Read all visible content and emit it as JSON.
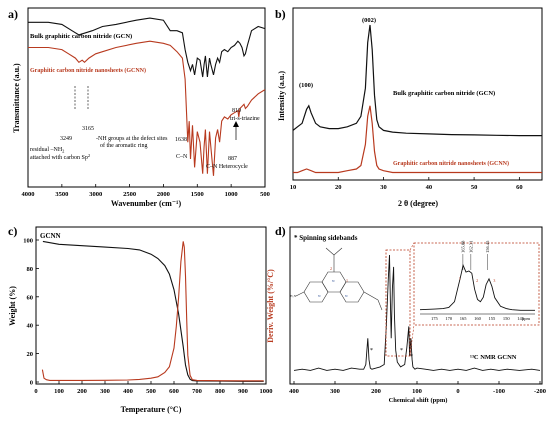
{
  "colors": {
    "black": "#111111",
    "red": "#b83a1f",
    "frame": "#000000"
  },
  "panels": {
    "a": {
      "label": "a)"
    },
    "b": {
      "label": "b)"
    },
    "c": {
      "label": "c)"
    },
    "d": {
      "label": "d)"
    }
  },
  "chart_data": [
    {
      "panel": "a",
      "type": "line",
      "xlabel": "Wavenumber (cm⁻¹)",
      "ylabel": "Transmittance (a.u.)",
      "xlim": [
        4000,
        500
      ],
      "xticks": [
        "4000",
        "3500",
        "3000",
        "2500",
        "2000",
        "1500",
        "1000",
        "500"
      ],
      "series": [
        {
          "name": "Bulk graphitic carbon nitride (GCN)",
          "color": "#111111",
          "x": [
            4000,
            3700,
            3500,
            3350,
            3250,
            3150,
            3050,
            2900,
            2700,
            2400,
            2200,
            2000,
            1900,
            1800,
            1720,
            1680,
            1640,
            1600,
            1570,
            1540,
            1500,
            1460,
            1420,
            1400,
            1380,
            1350,
            1320,
            1300,
            1260,
            1230,
            1200,
            1170,
            1140,
            1100,
            1050,
            1000,
            950,
            900,
            870,
            840,
            810,
            790,
            760,
            700,
            600,
            500
          ],
          "y": [
            37,
            37,
            36,
            33,
            31,
            32,
            33,
            35,
            36,
            38,
            39,
            38,
            33,
            33,
            32,
            24,
            18,
            14,
            17,
            12,
            20,
            19,
            11,
            17,
            21,
            11,
            20,
            17,
            12,
            17,
            20,
            18,
            23,
            24,
            23,
            25,
            26,
            28,
            27,
            25,
            21,
            22,
            26,
            33,
            35,
            34
          ]
        },
        {
          "name": "Graphitic carbon nitride nanosheets (GCNN)",
          "color": "#b83a1f",
          "x": [
            4000,
            3700,
            3500,
            3400,
            3300,
            3249,
            3200,
            3165,
            3100,
            3000,
            2900,
            2700,
            2400,
            2200,
            2000,
            1900,
            1800,
            1720,
            1680,
            1640,
            1620,
            1600,
            1570,
            1540,
            1500,
            1460,
            1420,
            1400,
            1380,
            1350,
            1320,
            1300,
            1260,
            1230,
            1200,
            1170,
            1140,
            1100,
            1050,
            1000,
            950,
            900,
            887,
            870,
            840,
            810,
            790,
            760,
            700,
            600,
            500
          ],
          "y": [
            25,
            25,
            24,
            22,
            20,
            18,
            19,
            18,
            20,
            22,
            23,
            25,
            27,
            28,
            27,
            26,
            23,
            20,
            10,
            -20,
            -10,
            -28,
            -12,
            -32,
            -15,
            -20,
            -35,
            -22,
            -14,
            -35,
            -15,
            -22,
            -36,
            -18,
            -14,
            -20,
            -10,
            -8,
            -9,
            -7,
            -6,
            -5,
            -8,
            -4,
            -3,
            -2,
            -4,
            -3,
            0,
            3,
            5
          ]
        }
      ],
      "annotations": [
        "3249",
        "3165",
        "-NH groups at the defect sites",
        "of the aromatic ring",
        "residual –NH",
        "attached with carbon Sp",
        "1638",
        "C–N",
        "887",
        "C–N Heterocycle",
        "810",
        "tri-s-triazine"
      ],
      "annotation_subs": [
        "2",
        "2"
      ]
    },
    {
      "panel": "b",
      "type": "line",
      "xlabel": "2 θ (degree)",
      "ylabel": "Intensity (a.u.)",
      "xlim": [
        10,
        65
      ],
      "xticks": [
        "10",
        "20",
        "30",
        "40",
        "50",
        "60"
      ],
      "series": [
        {
          "name": "Bulk graphitic carbon nitride (GCN)",
          "color": "#111111",
          "x": [
            10,
            11,
            12,
            13,
            13.5,
            14,
            15,
            16,
            18,
            20,
            22,
            24,
            25,
            26,
            26.5,
            27,
            27.5,
            28,
            28.5,
            29,
            30,
            32,
            35,
            40,
            45,
            50,
            55,
            60,
            65
          ],
          "y": [
            10,
            11,
            12,
            16,
            17,
            15,
            12,
            11,
            10.5,
            10.5,
            11,
            12,
            14,
            22,
            35,
            40,
            33,
            20,
            13,
            11,
            10,
            9.5,
            9.2,
            9,
            8.8,
            8.7,
            8.6,
            8.5,
            8.5
          ]
        },
        {
          "name": "Graphitic carbon nitride nanosheets (GCNN)",
          "color": "#b83a1f",
          "x": [
            10,
            11,
            12,
            13,
            14,
            15,
            18,
            20,
            22,
            24,
            25,
            26,
            26.5,
            27,
            27.5,
            28,
            28.5,
            29,
            30,
            32,
            35,
            40,
            45,
            50,
            55,
            60,
            65
          ],
          "y": [
            -2,
            -2,
            -1.5,
            -1,
            -1.5,
            -2,
            -2,
            -2,
            -1.5,
            -1,
            0,
            6,
            14,
            17,
            12,
            4,
            0,
            -1,
            -1.5,
            -2,
            -2,
            -2,
            -2,
            -2,
            -2,
            -2,
            -2
          ]
        }
      ],
      "annotations": [
        "(100)",
        "(002)"
      ]
    },
    {
      "panel": "c",
      "type": "line",
      "xlabel": "Temperature (°C)",
      "ylabel": "Weight (%)",
      "y2label": "Deriv. Weight (%/°C)",
      "xlim": [
        0,
        1000
      ],
      "ylim": [
        0,
        100
      ],
      "xticks": [
        "0",
        "100",
        "200",
        "300",
        "400",
        "500",
        "600",
        "700",
        "800",
        "900",
        "1000"
      ],
      "yticks": [
        "0",
        "20",
        "40",
        "60",
        "80",
        "100"
      ],
      "legend": "GCNN",
      "series": [
        {
          "name": "Weight",
          "color": "#111111",
          "x": [
            30,
            100,
            200,
            300,
            400,
            450,
            500,
            530,
            560,
            580,
            600,
            620,
            640,
            650,
            660,
            670,
            680,
            700,
            800,
            900,
            990
          ],
          "y": [
            99,
            97,
            96,
            95,
            94,
            93,
            90,
            87,
            82,
            76,
            65,
            48,
            25,
            12,
            5,
            2,
            1,
            0.8,
            0.6,
            0.5,
            0.5
          ]
        },
        {
          "name": "Deriv. Weight",
          "color": "#b83a1f",
          "x": [
            28,
            35,
            45,
            60,
            100,
            200,
            300,
            400,
            450,
            500,
            530,
            560,
            580,
            600,
            610,
            620,
            630,
            640,
            645,
            650,
            655,
            660,
            670,
            680,
            700,
            800,
            900,
            990
          ],
          "y": [
            10,
            4,
            3,
            2.5,
            2.5,
            2.5,
            2.6,
            2.8,
            3.2,
            4,
            5,
            8,
            12,
            25,
            40,
            60,
            85,
            99,
            95,
            75,
            45,
            20,
            6,
            3,
            2.5,
            2.3,
            2.2,
            2.2
          ]
        }
      ]
    },
    {
      "panel": "d",
      "type": "line",
      "xlabel": "Chemical shift (ppm)",
      "xlim": [
        400,
        -200
      ],
      "xticks": [
        "400",
        "300",
        "200",
        "100",
        "0",
        "-100",
        "-200"
      ],
      "legend": "* Spinning sidebands",
      "series_label": "¹³C NMR GCNN",
      "series": [
        {
          "name": "¹³C NMR GCNN",
          "color": "#111111",
          "x": [
            400,
            380,
            360,
            340,
            320,
            300,
            280,
            260,
            240,
            230,
            225,
            220,
            217,
            214,
            210,
            200,
            190,
            180,
            175,
            170,
            167,
            165,
            163,
            160,
            157,
            155,
            152,
            148,
            140,
            130,
            125,
            120,
            118,
            115,
            112,
            110,
            105,
            100,
            80,
            60,
            40,
            20,
            0,
            -20,
            -40,
            -60,
            -80,
            -100,
            -120,
            -150,
            -180,
            -200
          ],
          "y": [
            3,
            4,
            3,
            5,
            3,
            4,
            3,
            5,
            4,
            4,
            8,
            30,
            12,
            5,
            4,
            5,
            6,
            8,
            40,
            80,
            100,
            60,
            30,
            72,
            90,
            50,
            20,
            10,
            6,
            8,
            22,
            40,
            15,
            30,
            12,
            6,
            4,
            5,
            4,
            3,
            4,
            3,
            4,
            3,
            5,
            3,
            4,
            3,
            4,
            3,
            4,
            3
          ]
        }
      ],
      "inset": {
        "xlim": [
          180,
          140
        ],
        "xticks": [
          "175",
          "170",
          "165",
          "160",
          "155",
          "150",
          "145"
        ],
        "peak_labels": [
          "165.08",
          "162.31",
          "156.45"
        ],
        "site_labels": [
          "1",
          "2",
          "3"
        ],
        "xunit": "ppm"
      }
    }
  ]
}
